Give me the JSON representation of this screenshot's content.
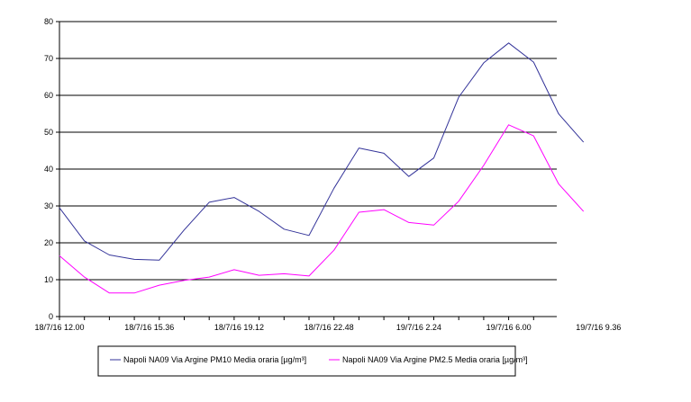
{
  "chart_data": {
    "type": "line",
    "title": "",
    "xlabel": "",
    "ylabel": "",
    "ylim": [
      0,
      80
    ],
    "yticks": [
      0,
      10,
      20,
      30,
      40,
      50,
      60,
      70,
      80
    ],
    "xtick_labels": [
      "18/7/16 12.00",
      "18/7/16 15.36",
      "18/7/16 19.12",
      "18/7/16 22.48",
      "19/7/16 2.24",
      "19/7/16 6.00",
      "19/7/16 9.36"
    ],
    "x": [
      "18/7/16 12.00",
      "18/7/16 13.00",
      "18/7/16 14.00",
      "18/7/16 15.00",
      "18/7/16 16.00",
      "18/7/16 17.00",
      "18/7/16 18.00",
      "18/7/16 19.00",
      "18/7/16 20.00",
      "18/7/16 21.00",
      "18/7/16 22.00",
      "18/7/16 23.00",
      "19/7/16 0.00",
      "19/7/16 1.00",
      "19/7/16 2.00",
      "19/7/16 3.00",
      "19/7/16 4.00",
      "19/7/16 5.00",
      "19/7/16 6.00",
      "19/7/16 7.00",
      "19/7/16 8.00",
      "19/7/16 9.00"
    ],
    "grid": true,
    "legend_position": "bottom",
    "series": [
      {
        "name": "Napoli NA09 Via Argine PM10 Media oraria [µg/m³]",
        "color": "#333399",
        "values": [
          29.5,
          20.5,
          16.7,
          15.5,
          15.3,
          23.5,
          31.0,
          32.3,
          28.5,
          23.7,
          22.0,
          34.8,
          45.7,
          44.3,
          38.0,
          43.0,
          59.5,
          68.8,
          74.2,
          69.0,
          55.0,
          47.3
        ]
      },
      {
        "name": "Napoli NA09 Via Argine PM2.5 Media oraria [µg/m³]",
        "color": "#ff00ff",
        "values": [
          16.5,
          10.7,
          6.4,
          6.4,
          8.5,
          9.8,
          10.7,
          12.7,
          11.2,
          11.6,
          11.0,
          18.0,
          28.3,
          29.0,
          25.5,
          24.8,
          31.3,
          41.0,
          52.0,
          49.0,
          36.0,
          28.5
        ]
      }
    ]
  }
}
